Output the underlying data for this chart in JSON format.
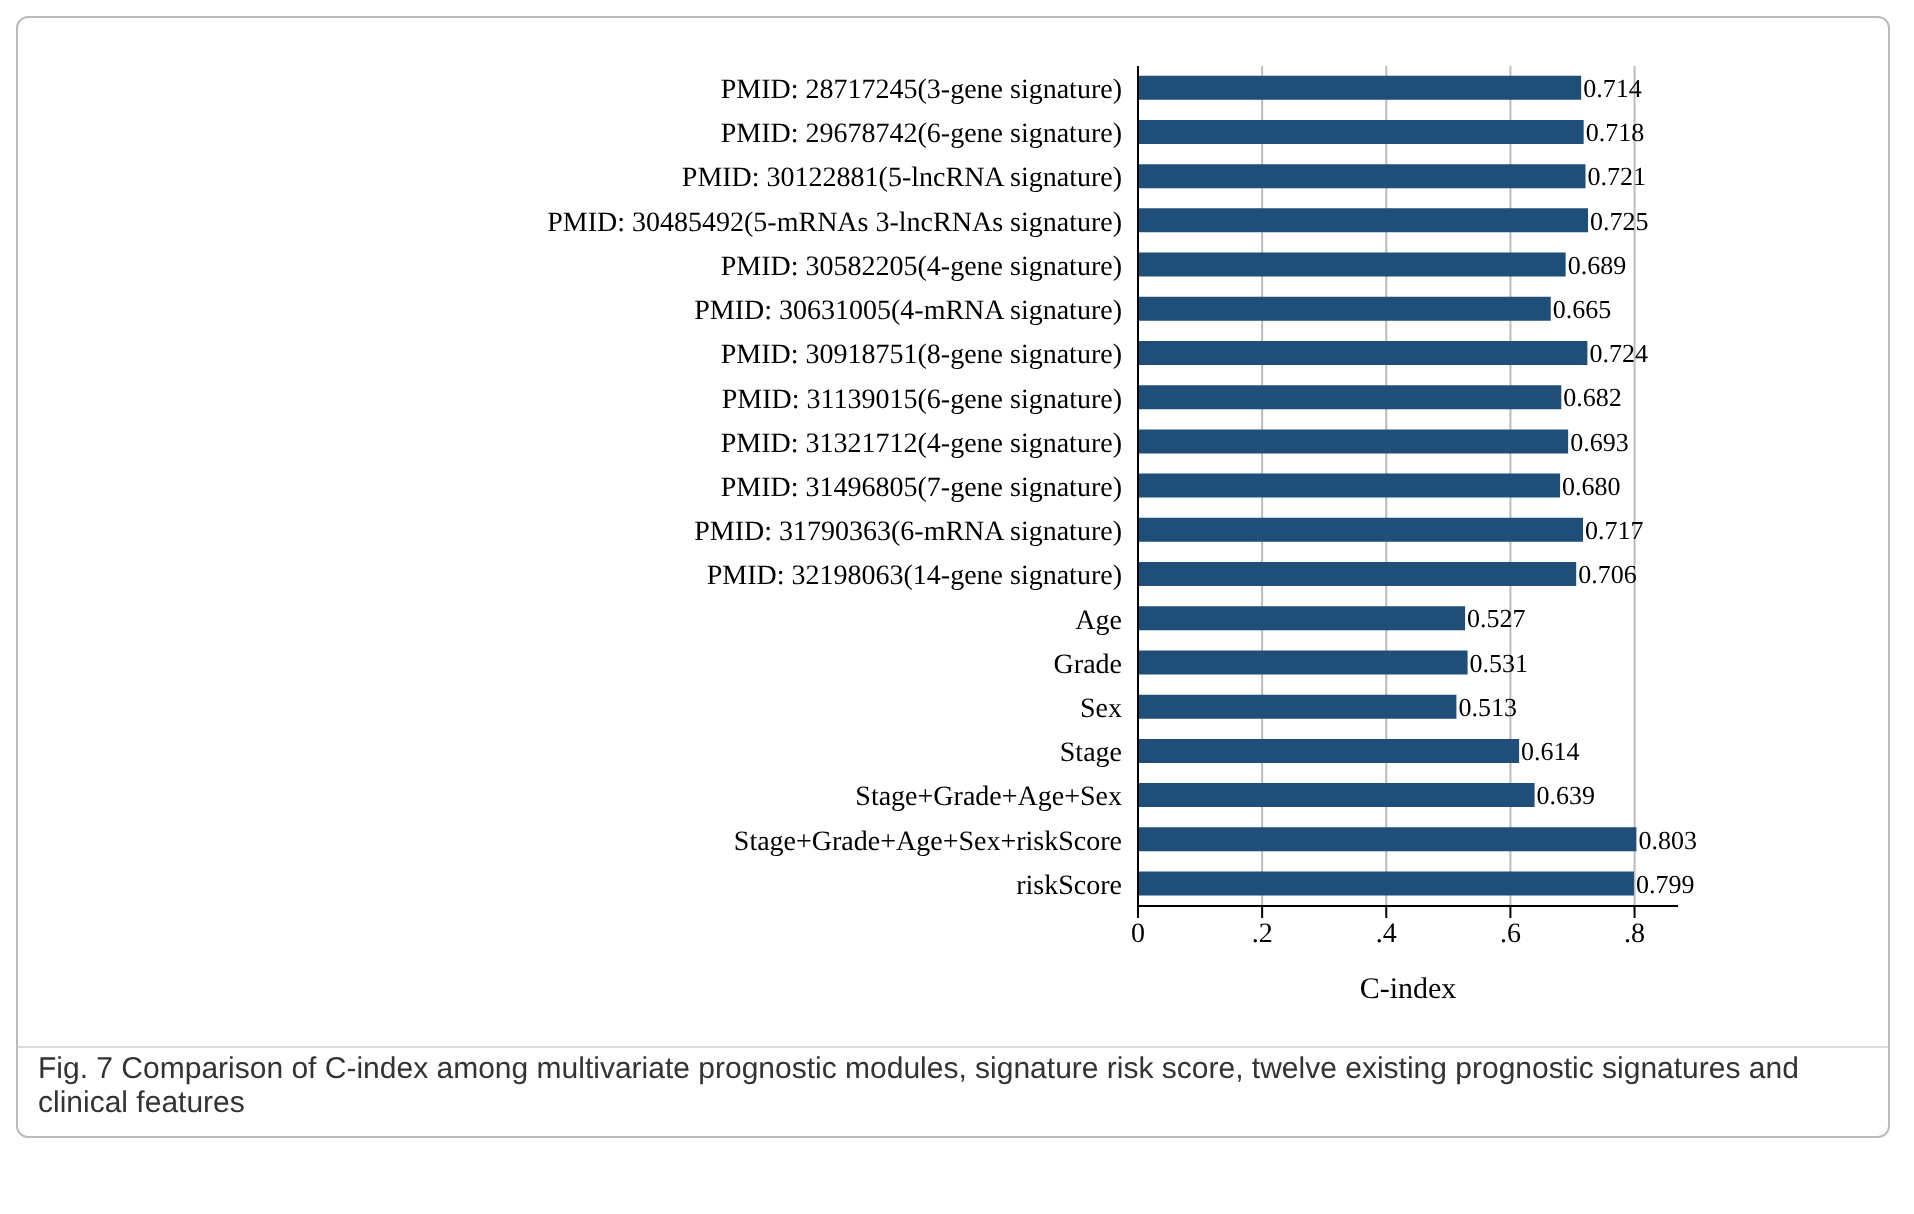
{
  "chart_data": {
    "type": "bar",
    "orientation": "horizontal",
    "xlabel": "C-index",
    "categories": [
      "PMID: 28717245(3-gene signature)",
      "PMID: 29678742(6-gene signature)",
      "PMID: 30122881(5-lncRNA signature)",
      "PMID: 30485492(5-mRNAs 3-lncRNAs signature)",
      "PMID: 30582205(4-gene signature)",
      "PMID: 30631005(4-mRNA signature)",
      "PMID: 30918751(8-gene signature)",
      "PMID: 31139015(6-gene signature)",
      "PMID: 31321712(4-gene signature)",
      "PMID: 31496805(7-gene signature)",
      "PMID: 31790363(6-mRNA signature)",
      "PMID: 32198063(14-gene signature)",
      "Age",
      "Grade",
      "Sex",
      "Stage",
      "Stage+Grade+Age+Sex",
      "Stage+Grade+Age+Sex+riskScore",
      "riskScore"
    ],
    "values": [
      0.714,
      0.718,
      0.721,
      0.725,
      0.689,
      0.665,
      0.724,
      0.682,
      0.693,
      0.68,
      0.717,
      0.706,
      0.527,
      0.531,
      0.513,
      0.614,
      0.639,
      0.803,
      0.799
    ],
    "value_labels": [
      "0.714",
      "0.718",
      "0.721",
      "0.725",
      "0.689",
      "0.665",
      "0.724",
      "0.682",
      "0.693",
      "0.680",
      "0.717",
      "0.706",
      "0.527",
      "0.531",
      "0.513",
      "0.614",
      "0.639",
      "0.803",
      "0.799"
    ],
    "color": "#1f4e79",
    "xlim": [
      0,
      0.87
    ],
    "xticks": [
      {
        "value": 0,
        "label": "0"
      },
      {
        "value": 0.2,
        "label": ".2"
      },
      {
        "value": 0.4,
        "label": ".4"
      },
      {
        "value": 0.6,
        "label": ".6"
      },
      {
        "value": 0.8,
        "label": ".8"
      }
    ],
    "grid": "x",
    "annotations": [
      "Fig. 7 Comparison of C-index among multivariate prognostic modules, signature risk score, twelve existing prognostic signatures and clinical features"
    ]
  }
}
